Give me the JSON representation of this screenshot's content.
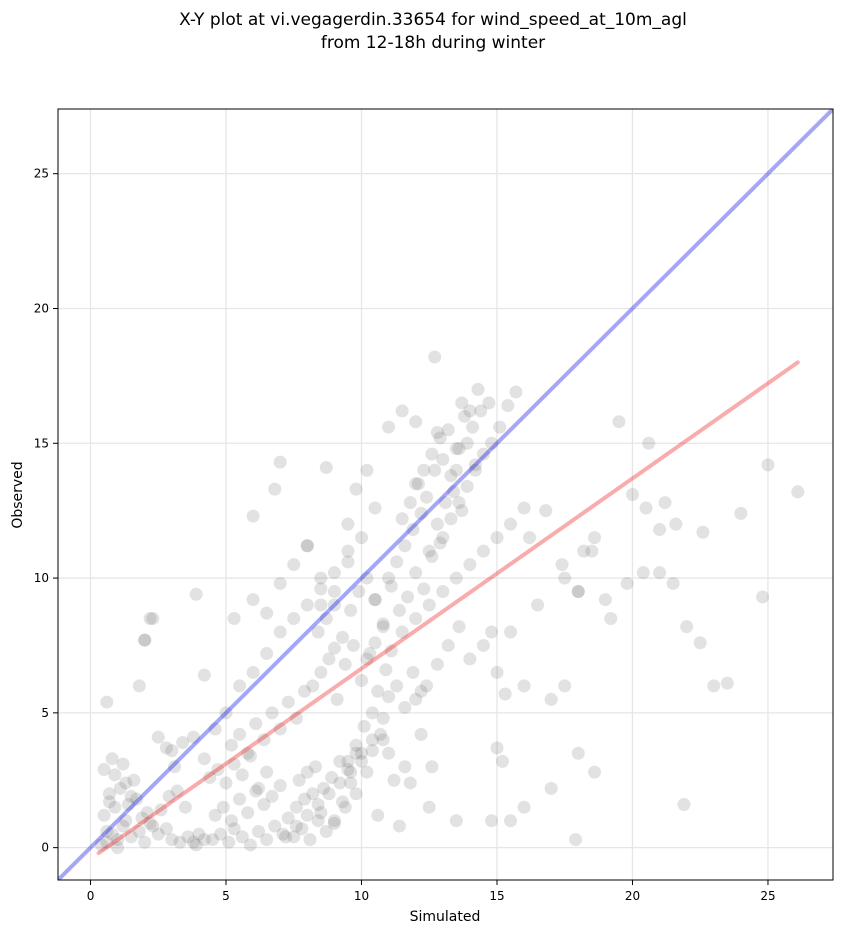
{
  "chart_data": {
    "type": "scatter",
    "title_line1": "X-Y plot at vi.vegagerdin.33654 for wind_speed_at_10m_agl",
    "title_line2": "from 12-18h during winter",
    "xlabel": "Simulated",
    "ylabel": "Observed",
    "xlim": [
      -1.2,
      27.4
    ],
    "ylim": [
      -1.2,
      27.4
    ],
    "xticks": [
      0,
      5,
      10,
      15,
      20,
      25
    ],
    "yticks": [
      0,
      5,
      10,
      15,
      20,
      25
    ],
    "grid": true,
    "colors": {
      "points": "#555555",
      "identity_line": "#0000ee",
      "fit_line": "#ee1111"
    },
    "identity_line": {
      "x": [
        -1.2,
        27.4
      ],
      "y": [
        -1.2,
        27.4
      ]
    },
    "fit_line": {
      "x": [
        0.3,
        26.1
      ],
      "y": [
        -0.2,
        18.0
      ]
    },
    "points": {
      "x": [
        0.6,
        0.8,
        1.0,
        1.2,
        1.5,
        1.8,
        2.0,
        2.2,
        0.5,
        0.9,
        1.3,
        1.7,
        2.1,
        2.5,
        2.8,
        3.0,
        3.3,
        3.6,
        3.9,
        4.2,
        0.7,
        1.1,
        1.4,
        1.6,
        1.9,
        2.3,
        2.6,
        2.9,
        3.2,
        3.5,
        0.4,
        0.6,
        0.9,
        1.2,
        1.5,
        0.8,
        1.0,
        1.3,
        0.5,
        0.7,
        4.5,
        4.8,
        5.1,
        5.3,
        5.6,
        5.9,
        6.2,
        6.5,
        6.8,
        7.1,
        4.6,
        4.9,
        5.2,
        5.5,
        5.8,
        6.1,
        6.4,
        6.7,
        7.0,
        7.3,
        4.4,
        4.7,
        5.0,
        5.3,
        5.6,
        5.9,
        6.2,
        6.5,
        3.8,
        4.0,
        7.5,
        7.8,
        8.1,
        8.4,
        8.7,
        9.0,
        7.6,
        7.9,
        8.2,
        8.5,
        7.7,
        8.0,
        8.3,
        8.6,
        8.9,
        9.2,
        9.5,
        9.8,
        9.3,
        9.6,
        5.2,
        5.5,
        5.8,
        6.1,
        6.4,
        6.7,
        7.0,
        7.3,
        7.6,
        7.9,
        3.0,
        3.4,
        3.8,
        4.2,
        4.6,
        2.5,
        2.8,
        3.1,
        2.0,
        2.2,
        8.2,
        8.5,
        8.8,
        9.1,
        9.4,
        9.7,
        10.0,
        10.3,
        10.6,
        10.9,
        8.4,
        8.7,
        9.0,
        9.3,
        9.6,
        9.9,
        10.2,
        10.5,
        10.8,
        11.1,
        9.5,
        9.8,
        10.1,
        10.4,
        10.7,
        11.0,
        11.3,
        11.6,
        11.9,
        12.2,
        10.2,
        10.5,
        10.8,
        11.1,
        11.4,
        11.7,
        12.0,
        12.3,
        12.6,
        12.9,
        11.0,
        11.3,
        11.6,
        11.9,
        12.2,
        12.5,
        12.8,
        13.1,
        13.4,
        13.7,
        11.5,
        11.8,
        12.1,
        12.4,
        12.7,
        13.0,
        13.3,
        13.6,
        13.9,
        14.2,
        12.0,
        12.3,
        12.6,
        12.9,
        13.2,
        13.5,
        13.8,
        14.1,
        14.4,
        14.7,
        13.0,
        13.3,
        13.6,
        13.9,
        14.2,
        14.5,
        14.8,
        15.1,
        15.4,
        15.7,
        10.0,
        10.4,
        10.8,
        11.2,
        11.6,
        12.0,
        12.4,
        12.8,
        13.2,
        13.6,
        9.0,
        9.4,
        9.8,
        10.2,
        10.6,
        11.0,
        11.4,
        11.8,
        12.2,
        12.6,
        6.0,
        6.5,
        7.0,
        7.5,
        8.0,
        8.5,
        9.0,
        9.5,
        10.0,
        10.5,
        5.0,
        5.5,
        6.0,
        6.5,
        7.0,
        7.5,
        8.0,
        8.5,
        9.0,
        9.5,
        7.2,
        7.6,
        8.0,
        8.4,
        8.8,
        9.2,
        9.6,
        10.0,
        10.4,
        10.8,
        11.5,
        12.0,
        12.5,
        13.0,
        13.5,
        14.0,
        14.5,
        15.0,
        15.5,
        16.0,
        14.0,
        14.5,
        15.0,
        15.5,
        16.0,
        16.5,
        17.0,
        17.5,
        18.0,
        18.5,
        16.2,
        16.8,
        17.4,
        18.0,
        18.6,
        19.2,
        19.8,
        20.4,
        21.0,
        21.6,
        20.0,
        20.5,
        21.0,
        21.5,
        22.0,
        22.5,
        23.0,
        24.0,
        24.8,
        26.1,
        17.0,
        17.5,
        18.2,
        19.0,
        19.5,
        20.6,
        21.2,
        22.6,
        23.5,
        25.0,
        12.7,
        14.0,
        14.8,
        15.0,
        15.3,
        13.5,
        11.0,
        10.2,
        9.8,
        9.0,
        8.0,
        8.5,
        6.0,
        5.3,
        4.2,
        3.9,
        2.3,
        2.0,
        1.8,
        0.6,
        12.5,
        13.5,
        14.8,
        15.5,
        16.0,
        17.9,
        18.0,
        18.6,
        21.9,
        15.2,
        13.7,
        14.3,
        12.0,
        11.5,
        12.8,
        10.5,
        9.5,
        8.7,
        7.0,
        6.8
      ],
      "y": [
        0.2,
        0.5,
        0.3,
        0.8,
        0.4,
        0.6,
        0.2,
        0.9,
        1.2,
        1.5,
        1.0,
        1.8,
        1.3,
        0.5,
        0.7,
        0.3,
        0.2,
        0.4,
        0.1,
        0.3,
        2.0,
        2.2,
        1.6,
        2.5,
        1.1,
        0.8,
        1.4,
        1.9,
        2.1,
        1.5,
        0.1,
        0.6,
        2.7,
        3.1,
        1.9,
        3.3,
        0.0,
        2.4,
        2.9,
        1.7,
        0.3,
        0.5,
        0.2,
        0.7,
        0.4,
        0.1,
        0.6,
        0.3,
        0.8,
        0.5,
        1.2,
        1.5,
        1.0,
        1.8,
        1.3,
        2.1,
        1.6,
        1.9,
        2.3,
        1.1,
        2.6,
        2.9,
        2.4,
        3.1,
        2.7,
        3.4,
        2.2,
        2.8,
        0.2,
        0.5,
        0.4,
        0.7,
        0.3,
        1.0,
        0.6,
        0.9,
        1.5,
        1.8,
        2.0,
        1.3,
        2.5,
        2.8,
        3.0,
        2.2,
        2.6,
        3.2,
        2.9,
        3.5,
        1.7,
        2.4,
        3.8,
        4.2,
        3.5,
        4.6,
        4.0,
        5.0,
        4.4,
        5.4,
        4.8,
        5.8,
        3.6,
        3.9,
        4.1,
        3.3,
        4.4,
        4.1,
        3.7,
        3.0,
        7.7,
        8.5,
        6.0,
        6.5,
        7.0,
        5.5,
        6.8,
        7.5,
        6.2,
        7.2,
        5.8,
        6.6,
        8.0,
        8.5,
        9.0,
        7.8,
        8.8,
        9.5,
        10.0,
        9.2,
        8.3,
        9.7,
        3.2,
        3.8,
        4.5,
        5.0,
        4.2,
        5.6,
        6.0,
        5.2,
        6.5,
        5.8,
        7.0,
        7.6,
        8.2,
        7.3,
        8.8,
        9.3,
        10.2,
        9.6,
        10.8,
        11.3,
        10.0,
        10.6,
        11.2,
        11.8,
        12.4,
        11.0,
        12.0,
        12.8,
        13.2,
        12.5,
        12.2,
        12.8,
        13.5,
        13.0,
        14.0,
        14.4,
        13.8,
        14.8,
        15.0,
        14.2,
        13.5,
        14.0,
        14.6,
        15.2,
        15.5,
        14.8,
        16.0,
        15.6,
        16.2,
        16.5,
        11.5,
        12.2,
        12.8,
        13.4,
        14.0,
        14.6,
        15.0,
        15.6,
        16.4,
        16.9,
        3.5,
        4.0,
        4.8,
        2.5,
        3.0,
        5.5,
        6.0,
        6.8,
        7.5,
        8.2,
        1.0,
        1.5,
        2.0,
        2.8,
        1.2,
        3.5,
        0.8,
        2.4,
        4.2,
        3.0,
        9.2,
        8.7,
        9.8,
        10.5,
        11.2,
        10.0,
        9.5,
        12.0,
        11.5,
        12.6,
        5.0,
        6.0,
        6.5,
        7.2,
        8.0,
        8.5,
        9.0,
        9.6,
        10.2,
        11.0,
        0.4,
        0.8,
        1.2,
        1.6,
        2.0,
        2.4,
        2.8,
        3.2,
        3.6,
        4.0,
        8.0,
        8.5,
        9.0,
        9.5,
        10.0,
        10.5,
        11.0,
        11.5,
        12.0,
        12.6,
        7.0,
        7.5,
        6.5,
        8.0,
        6.0,
        9.0,
        5.5,
        10.0,
        9.5,
        11.0,
        11.5,
        12.5,
        10.5,
        9.5,
        11.5,
        8.5,
        9.8,
        10.2,
        11.8,
        12.0,
        13.1,
        12.6,
        10.2,
        9.8,
        8.2,
        7.6,
        6.0,
        12.4,
        9.3,
        13.2,
        2.2,
        6.0,
        11.0,
        9.2,
        15.8,
        15.0,
        12.8,
        11.7,
        6.1,
        14.2,
        18.2,
        16.2,
        8.0,
        3.7,
        5.7,
        14.0,
        15.6,
        14.0,
        13.3,
        7.4,
        11.2,
        9.0,
        12.3,
        8.5,
        6.4,
        9.4,
        8.5,
        7.7,
        6.0,
        5.4,
        1.5,
        1.0,
        1.0,
        1.0,
        1.5,
        0.3,
        3.5,
        2.8,
        1.6,
        3.2,
        16.5,
        17.0,
        15.8,
        16.2,
        15.4,
        9.2,
        10.6,
        14.1,
        14.3,
        13.3
      ]
    }
  }
}
